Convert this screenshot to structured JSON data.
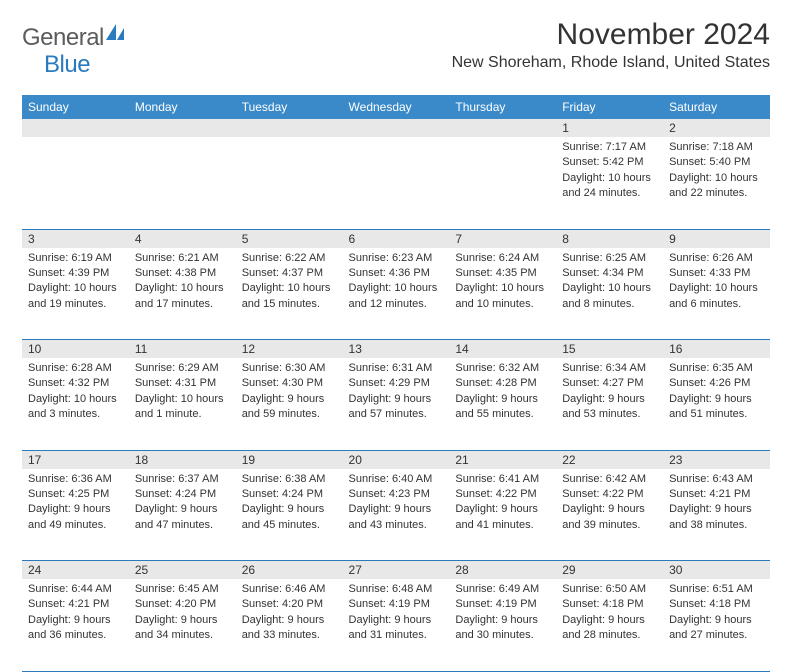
{
  "logo": {
    "general": "General",
    "blue": "Blue"
  },
  "title": "November 2024",
  "location": "New Shoreham, Rhode Island, United States",
  "colors": {
    "header_bg": "#3a8ac9",
    "header_text": "#ffffff",
    "daynum_bg": "#e8e8e8",
    "border": "#2a7ac0",
    "text": "#333333",
    "logo_gray": "#5c5c5c",
    "logo_blue": "#2a7ac0"
  },
  "weekdays": [
    "Sunday",
    "Monday",
    "Tuesday",
    "Wednesday",
    "Thursday",
    "Friday",
    "Saturday"
  ],
  "weeks": [
    [
      null,
      null,
      null,
      null,
      null,
      {
        "n": "1",
        "sr": "Sunrise: 7:17 AM",
        "ss": "Sunset: 5:42 PM",
        "d1": "Daylight: 10 hours",
        "d2": "and 24 minutes."
      },
      {
        "n": "2",
        "sr": "Sunrise: 7:18 AM",
        "ss": "Sunset: 5:40 PM",
        "d1": "Daylight: 10 hours",
        "d2": "and 22 minutes."
      }
    ],
    [
      {
        "n": "3",
        "sr": "Sunrise: 6:19 AM",
        "ss": "Sunset: 4:39 PM",
        "d1": "Daylight: 10 hours",
        "d2": "and 19 minutes."
      },
      {
        "n": "4",
        "sr": "Sunrise: 6:21 AM",
        "ss": "Sunset: 4:38 PM",
        "d1": "Daylight: 10 hours",
        "d2": "and 17 minutes."
      },
      {
        "n": "5",
        "sr": "Sunrise: 6:22 AM",
        "ss": "Sunset: 4:37 PM",
        "d1": "Daylight: 10 hours",
        "d2": "and 15 minutes."
      },
      {
        "n": "6",
        "sr": "Sunrise: 6:23 AM",
        "ss": "Sunset: 4:36 PM",
        "d1": "Daylight: 10 hours",
        "d2": "and 12 minutes."
      },
      {
        "n": "7",
        "sr": "Sunrise: 6:24 AM",
        "ss": "Sunset: 4:35 PM",
        "d1": "Daylight: 10 hours",
        "d2": "and 10 minutes."
      },
      {
        "n": "8",
        "sr": "Sunrise: 6:25 AM",
        "ss": "Sunset: 4:34 PM",
        "d1": "Daylight: 10 hours",
        "d2": "and 8 minutes."
      },
      {
        "n": "9",
        "sr": "Sunrise: 6:26 AM",
        "ss": "Sunset: 4:33 PM",
        "d1": "Daylight: 10 hours",
        "d2": "and 6 minutes."
      }
    ],
    [
      {
        "n": "10",
        "sr": "Sunrise: 6:28 AM",
        "ss": "Sunset: 4:32 PM",
        "d1": "Daylight: 10 hours",
        "d2": "and 3 minutes."
      },
      {
        "n": "11",
        "sr": "Sunrise: 6:29 AM",
        "ss": "Sunset: 4:31 PM",
        "d1": "Daylight: 10 hours",
        "d2": "and 1 minute."
      },
      {
        "n": "12",
        "sr": "Sunrise: 6:30 AM",
        "ss": "Sunset: 4:30 PM",
        "d1": "Daylight: 9 hours",
        "d2": "and 59 minutes."
      },
      {
        "n": "13",
        "sr": "Sunrise: 6:31 AM",
        "ss": "Sunset: 4:29 PM",
        "d1": "Daylight: 9 hours",
        "d2": "and 57 minutes."
      },
      {
        "n": "14",
        "sr": "Sunrise: 6:32 AM",
        "ss": "Sunset: 4:28 PM",
        "d1": "Daylight: 9 hours",
        "d2": "and 55 minutes."
      },
      {
        "n": "15",
        "sr": "Sunrise: 6:34 AM",
        "ss": "Sunset: 4:27 PM",
        "d1": "Daylight: 9 hours",
        "d2": "and 53 minutes."
      },
      {
        "n": "16",
        "sr": "Sunrise: 6:35 AM",
        "ss": "Sunset: 4:26 PM",
        "d1": "Daylight: 9 hours",
        "d2": "and 51 minutes."
      }
    ],
    [
      {
        "n": "17",
        "sr": "Sunrise: 6:36 AM",
        "ss": "Sunset: 4:25 PM",
        "d1": "Daylight: 9 hours",
        "d2": "and 49 minutes."
      },
      {
        "n": "18",
        "sr": "Sunrise: 6:37 AM",
        "ss": "Sunset: 4:24 PM",
        "d1": "Daylight: 9 hours",
        "d2": "and 47 minutes."
      },
      {
        "n": "19",
        "sr": "Sunrise: 6:38 AM",
        "ss": "Sunset: 4:24 PM",
        "d1": "Daylight: 9 hours",
        "d2": "and 45 minutes."
      },
      {
        "n": "20",
        "sr": "Sunrise: 6:40 AM",
        "ss": "Sunset: 4:23 PM",
        "d1": "Daylight: 9 hours",
        "d2": "and 43 minutes."
      },
      {
        "n": "21",
        "sr": "Sunrise: 6:41 AM",
        "ss": "Sunset: 4:22 PM",
        "d1": "Daylight: 9 hours",
        "d2": "and 41 minutes."
      },
      {
        "n": "22",
        "sr": "Sunrise: 6:42 AM",
        "ss": "Sunset: 4:22 PM",
        "d1": "Daylight: 9 hours",
        "d2": "and 39 minutes."
      },
      {
        "n": "23",
        "sr": "Sunrise: 6:43 AM",
        "ss": "Sunset: 4:21 PM",
        "d1": "Daylight: 9 hours",
        "d2": "and 38 minutes."
      }
    ],
    [
      {
        "n": "24",
        "sr": "Sunrise: 6:44 AM",
        "ss": "Sunset: 4:21 PM",
        "d1": "Daylight: 9 hours",
        "d2": "and 36 minutes."
      },
      {
        "n": "25",
        "sr": "Sunrise: 6:45 AM",
        "ss": "Sunset: 4:20 PM",
        "d1": "Daylight: 9 hours",
        "d2": "and 34 minutes."
      },
      {
        "n": "26",
        "sr": "Sunrise: 6:46 AM",
        "ss": "Sunset: 4:20 PM",
        "d1": "Daylight: 9 hours",
        "d2": "and 33 minutes."
      },
      {
        "n": "27",
        "sr": "Sunrise: 6:48 AM",
        "ss": "Sunset: 4:19 PM",
        "d1": "Daylight: 9 hours",
        "d2": "and 31 minutes."
      },
      {
        "n": "28",
        "sr": "Sunrise: 6:49 AM",
        "ss": "Sunset: 4:19 PM",
        "d1": "Daylight: 9 hours",
        "d2": "and 30 minutes."
      },
      {
        "n": "29",
        "sr": "Sunrise: 6:50 AM",
        "ss": "Sunset: 4:18 PM",
        "d1": "Daylight: 9 hours",
        "d2": "and 28 minutes."
      },
      {
        "n": "30",
        "sr": "Sunrise: 6:51 AM",
        "ss": "Sunset: 4:18 PM",
        "d1": "Daylight: 9 hours",
        "d2": "and 27 minutes."
      }
    ]
  ]
}
